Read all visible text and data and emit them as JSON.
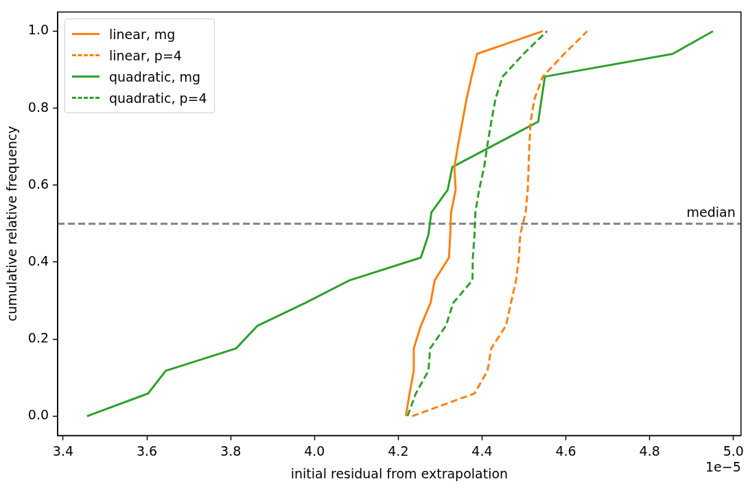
{
  "chart_data": {
    "type": "line",
    "xlabel": "initial residual from extrapolation",
    "ylabel": "cumulative relative frequency",
    "xlim": [
      3.387,
      5.018
    ],
    "ylim": [
      -0.05,
      1.05
    ],
    "xticks": [
      {
        "value": 3.4,
        "label": "3.4"
      },
      {
        "value": 3.6,
        "label": "3.6"
      },
      {
        "value": 3.8,
        "label": "3.8"
      },
      {
        "value": 4.0,
        "label": "4.0"
      },
      {
        "value": 4.2,
        "label": "4.2"
      },
      {
        "value": 4.4,
        "label": "4.4"
      },
      {
        "value": 4.6,
        "label": "4.6"
      },
      {
        "value": 4.8,
        "label": "4.8"
      },
      {
        "value": 5.0,
        "label": "5.0"
      }
    ],
    "yticks": [
      {
        "value": 0,
        "label": "0.0"
      },
      {
        "value": 0.2,
        "label": "0.2"
      },
      {
        "value": 0.4,
        "label": "0.4"
      },
      {
        "value": 0.6,
        "label": "0.6"
      },
      {
        "value": 0.8,
        "label": "0.8"
      },
      {
        "value": 1.0,
        "label": "1.0"
      }
    ],
    "grid": false,
    "legend": "top left",
    "marker": "none",
    "series": [
      {
        "name": "linear, mg",
        "color": "#ff7f0e",
        "line_style": "solid",
        "x": [
          4.218,
          4.227,
          4.237,
          4.237,
          4.254,
          4.277,
          4.287,
          4.321,
          4.324,
          4.326,
          4.337,
          4.334,
          4.343,
          4.353,
          4.363,
          4.375,
          4.388,
          4.545
        ],
        "values": [
          0,
          0.059,
          0.118,
          0.176,
          0.235,
          0.294,
          0.353,
          0.412,
          0.471,
          0.529,
          0.588,
          0.647,
          0.706,
          0.765,
          0.824,
          0.882,
          0.941,
          1
        ]
      },
      {
        "name": "linear, p=4",
        "color": "#ff7f0e",
        "line_style": "dashed",
        "x": [
          4.233,
          4.382,
          4.413,
          4.422,
          4.457,
          4.469,
          4.481,
          4.488,
          4.491,
          4.504,
          4.509,
          4.511,
          4.513,
          4.516,
          4.525,
          4.545,
          4.596,
          4.651
        ],
        "values": [
          0,
          0.059,
          0.118,
          0.176,
          0.235,
          0.294,
          0.353,
          0.412,
          0.471,
          0.529,
          0.588,
          0.647,
          0.706,
          0.765,
          0.824,
          0.882,
          0.941,
          1
        ]
      },
      {
        "name": "quadratic, mg",
        "color": "#2ca02c",
        "line_style": "solid",
        "x": [
          3.457,
          3.603,
          3.645,
          3.813,
          3.864,
          3.978,
          4.084,
          4.254,
          4.272,
          4.279,
          4.318,
          4.329,
          4.534,
          4.55,
          4.855,
          4.951
        ],
        "values": [
          0,
          0.059,
          0.118,
          0.176,
          0.235,
          0.294,
          0.353,
          0.412,
          0.471,
          0.529,
          0.588,
          0.647,
          0.765,
          0.882,
          0.941,
          1
        ]
      },
      {
        "name": "quadratic, p=4",
        "color": "#2ca02c",
        "line_style": "dashed",
        "x": [
          4.222,
          4.242,
          4.272,
          4.276,
          4.314,
          4.331,
          4.377,
          4.378,
          4.382,
          4.384,
          4.393,
          4.405,
          4.413,
          4.422,
          4.432,
          4.449,
          4.499,
          4.555
        ],
        "values": [
          0,
          0.059,
          0.118,
          0.176,
          0.235,
          0.294,
          0.353,
          0.412,
          0.471,
          0.529,
          0.588,
          0.647,
          0.706,
          0.765,
          0.824,
          0.882,
          0.941,
          1
        ]
      }
    ],
    "ref_lines": [
      {
        "axis": "y",
        "value": 0.5,
        "label": "median",
        "color": "#808080",
        "line_style": "dashed"
      }
    ],
    "annotations": [
      "1e−5"
    ]
  }
}
